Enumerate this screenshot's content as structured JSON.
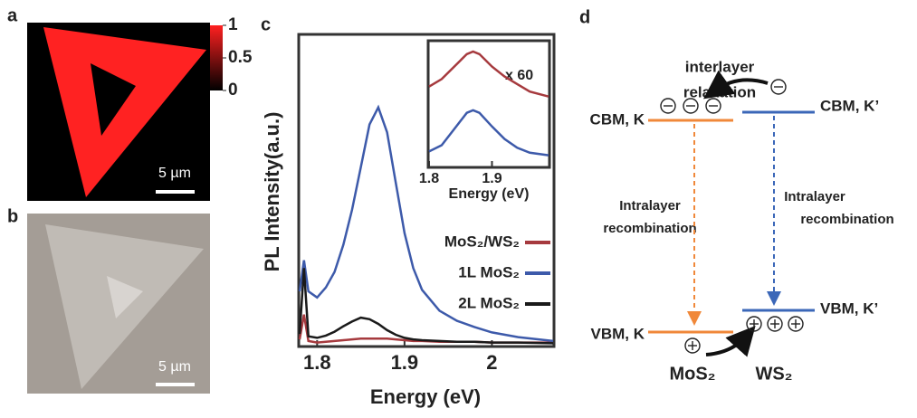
{
  "panel_a": {
    "label": "a",
    "colorbar_lim": [
      0,
      1
    ],
    "colorbar_ticks": [
      0,
      0.5,
      1
    ],
    "scale_bar": "5 µm"
  },
  "panel_b": {
    "label": "b",
    "scale_bar": "5 µm"
  },
  "panel_c_label": "c",
  "chart_data": [
    {
      "type": "line",
      "xlabel": "Energy (eV)",
      "ylabel": "PL Intensity(a.u.)",
      "x": [
        1.78,
        1.785,
        1.79,
        1.8,
        1.81,
        1.82,
        1.83,
        1.84,
        1.85,
        1.86,
        1.87,
        1.88,
        1.89,
        1.9,
        1.91,
        1.92,
        1.94,
        1.96,
        1.98,
        2,
        2.03,
        2.07
      ],
      "xlim": [
        1.78,
        2.07
      ],
      "xticks": [
        1.8,
        1.9,
        2
      ],
      "ylim": [
        0,
        4
      ],
      "legend_position": "right",
      "series": [
        {
          "name": "MoS₂/WS₂",
          "color": "#a63a3e",
          "values": [
            0.08,
            0.4,
            0.06,
            0.04,
            0.05,
            0.06,
            0.07,
            0.08,
            0.09,
            0.09,
            0.09,
            0.09,
            0.08,
            0.07,
            0.06,
            0.06,
            0.05,
            0.05,
            0.05,
            0.04,
            0.04,
            0.04
          ]
        },
        {
          "name": "1L MoS₂",
          "color": "#3d5aaa",
          "values": [
            0.7,
            1.1,
            0.7,
            0.62,
            0.75,
            0.95,
            1.3,
            1.75,
            2.3,
            2.85,
            3.07,
            2.75,
            2.1,
            1.45,
            1.0,
            0.72,
            0.45,
            0.32,
            0.24,
            0.17,
            0.11,
            0.06
          ]
        },
        {
          "name": "2L MoS₂",
          "color": "#1a1a1a",
          "values": [
            0.15,
            1.0,
            0.12,
            0.1,
            0.13,
            0.18,
            0.25,
            0.31,
            0.36,
            0.34,
            0.28,
            0.2,
            0.14,
            0.1,
            0.08,
            0.07,
            0.06,
            0.05,
            0.05,
            0.04,
            0.04,
            0.03
          ]
        }
      ]
    },
    {
      "type": "line",
      "xlabel": "Energy (eV)",
      "annotation": "x 60",
      "x": [
        1.8,
        1.82,
        1.84,
        1.86,
        1.87,
        1.88,
        1.9,
        1.92,
        1.94,
        1.96,
        1.99
      ],
      "xlim": [
        1.8,
        1.99
      ],
      "xticks": [
        1.8,
        1.9
      ],
      "ylim": [
        0,
        1
      ],
      "series": [
        {
          "color": "#a63a3e",
          "values": [
            0.64,
            0.7,
            0.8,
            0.9,
            0.92,
            0.9,
            0.8,
            0.72,
            0.66,
            0.6,
            0.56
          ]
        },
        {
          "color": "#3d5aaa",
          "values": [
            0.12,
            0.17,
            0.3,
            0.43,
            0.45,
            0.43,
            0.32,
            0.22,
            0.15,
            0.11,
            0.09
          ]
        }
      ]
    }
  ],
  "diagram": {
    "label": "d",
    "relaxation": [
      "interlayer",
      "relaxation"
    ],
    "cbm_k": "CBM, K",
    "cbm_k2": "CBM, K’",
    "vbm_k": "VBM, K",
    "vbm_k2": "VBM, K’",
    "recombination_left": [
      "Intralayer",
      "recombination"
    ],
    "recombination_right": [
      "Intralayer",
      "recombination"
    ],
    "material_left": "MoS₂",
    "material_right": "WS₂"
  }
}
